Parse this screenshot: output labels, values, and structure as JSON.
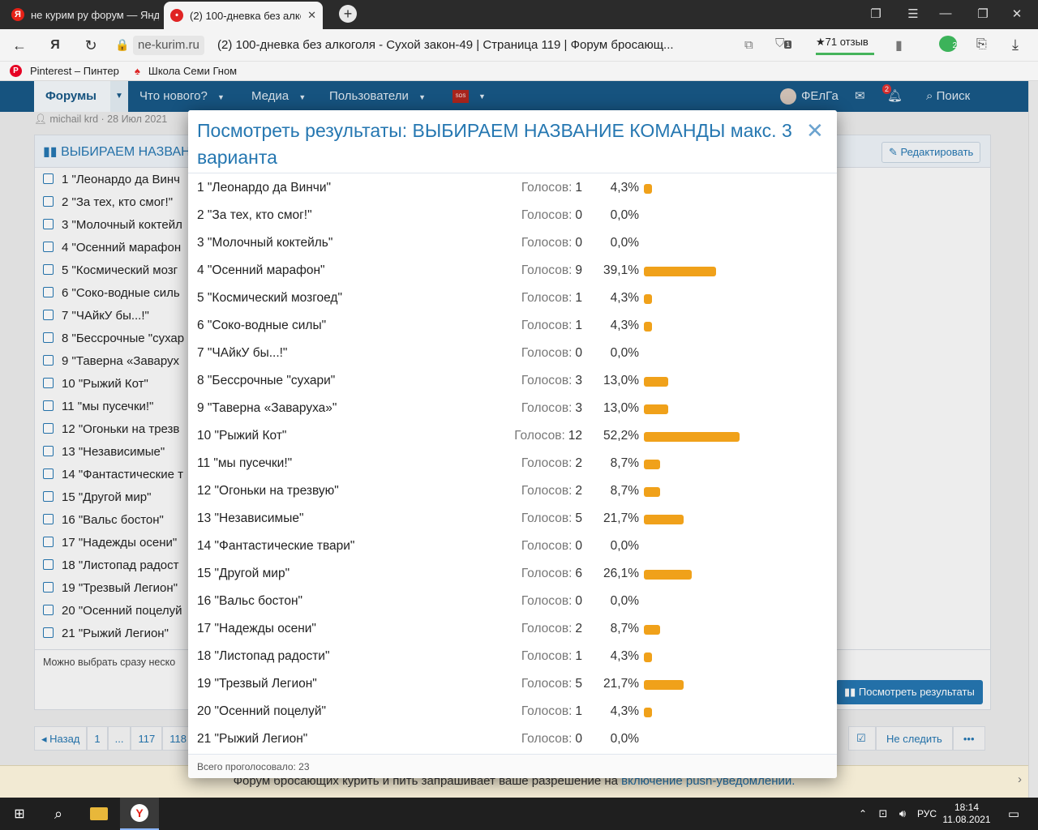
{
  "browser": {
    "tabs": [
      {
        "title": "не курим ру форум — Янд",
        "favicon": "Я",
        "active": false
      },
      {
        "title": "(2) 100-дневка без алко",
        "favicon": "•",
        "active": true
      }
    ],
    "new_tab": "+",
    "domain": "ne-kurim.ru",
    "page_title": "(2) 100-дневка без алкоголя - Сухой закон-49 | Страница 119 | Форум бросающ...",
    "reviews": "★71 отзыв",
    "ext_badge_1": "1",
    "ext_badge_2": "2",
    "bookmarks": [
      "Pinterest – Пинтер",
      "Школа Семи Гном"
    ]
  },
  "forum_nav": {
    "items": [
      "Форумы",
      "Что нового?",
      "Медиа",
      "Пользователи"
    ],
    "sos": "SOS",
    "user": "ФЕлГа",
    "alerts_count": "2",
    "search": "Поиск"
  },
  "thread": {
    "author_meta": "michail krd · 28 Июл 2021",
    "poll_heading": "ВЫБИРАЕМ НАЗВАН",
    "edit_button": "Редактировать",
    "options": [
      "1 \"Леонардо да Винч",
      "2 \"За тех, кто смог!\"",
      "3 \"Молочный коктейл",
      "4 \"Осенний марафон",
      "5 \"Космический мозг",
      "6 \"Соко-водные силь",
      "7 \"ЧАйкУ бы...!\"",
      "8 \"Бессрочные \"сухар",
      "9 \"Таверна «Заварух",
      "10 \"Рыжий Кот\"",
      "11 \"мы пусечки!\"",
      "12 \"Огоньки на трезв",
      "13 \"Независимые\"",
      "14 \"Фантастические т",
      "15 \"Другой мир\"",
      "16 \"Вальс бостон\"",
      "17 \"Надежды осени\"",
      "18 \"Листопад радост",
      "19 \"Трезвый Легион\"",
      "20 \"Осенний поцелуй",
      "21 \"Рыжий Легион\""
    ],
    "hint": "Можно выбрать сразу неско",
    "view_results": "Посмотреть результаты",
    "pagination": [
      "◂ Назад",
      "1",
      "...",
      "117",
      "118"
    ],
    "unwatch": "Не следить",
    "more": "•••",
    "push_notice_text": "Форум бросающих курить и пить запрашивает ваше разрешение на ",
    "push_notice_link": "включение push-уведомлений."
  },
  "modal": {
    "title": "Посмотреть результаты: ВЫБИРАЕМ НАЗВАНИЕ КОМАНДЫ макс. 3 варианта",
    "votes_label": "Голосов:",
    "rows": [
      {
        "label": "1 \"Леонардо да Винчи\"",
        "votes": 1,
        "percent": "4,3%",
        "pct": 4.3
      },
      {
        "label": "2 \"За тех, кто смог!\"",
        "votes": 0,
        "percent": "0,0%",
        "pct": 0
      },
      {
        "label": "3 \"Молочный коктейль\"",
        "votes": 0,
        "percent": "0,0%",
        "pct": 0
      },
      {
        "label": "4 \"Осенний марафон\"",
        "votes": 9,
        "percent": "39,1%",
        "pct": 39.1
      },
      {
        "label": "5 \"Космический мозгоед\"",
        "votes": 1,
        "percent": "4,3%",
        "pct": 4.3
      },
      {
        "label": "6 \"Соко-водные силы\"",
        "votes": 1,
        "percent": "4,3%",
        "pct": 4.3
      },
      {
        "label": "7 \"ЧАйкУ бы...!\"",
        "votes": 0,
        "percent": "0,0%",
        "pct": 0
      },
      {
        "label": "8 \"Бессрочные \"сухари\"",
        "votes": 3,
        "percent": "13,0%",
        "pct": 13.0
      },
      {
        "label": "9 \"Таверна «Заваруха»\"",
        "votes": 3,
        "percent": "13,0%",
        "pct": 13.0
      },
      {
        "label": "10 \"Рыжий Кот\"",
        "votes": 12,
        "percent": "52,2%",
        "pct": 52.2
      },
      {
        "label": "11 \"мы пусечки!\"",
        "votes": 2,
        "percent": "8,7%",
        "pct": 8.7
      },
      {
        "label": "12 \"Огоньки на трезвую\"",
        "votes": 2,
        "percent": "8,7%",
        "pct": 8.7
      },
      {
        "label": "13 \"Независимые\"",
        "votes": 5,
        "percent": "21,7%",
        "pct": 21.7
      },
      {
        "label": "14 \"Фантастические твари\"",
        "votes": 0,
        "percent": "0,0%",
        "pct": 0
      },
      {
        "label": "15 \"Другой мир\"",
        "votes": 6,
        "percent": "26,1%",
        "pct": 26.1
      },
      {
        "label": "16 \"Вальс бостон\"",
        "votes": 0,
        "percent": "0,0%",
        "pct": 0
      },
      {
        "label": "17 \"Надежды осени\"",
        "votes": 2,
        "percent": "8,7%",
        "pct": 8.7
      },
      {
        "label": "18 \"Листопад радости\"",
        "votes": 1,
        "percent": "4,3%",
        "pct": 4.3
      },
      {
        "label": "19 \"Трезвый Легион\"",
        "votes": 5,
        "percent": "21,7%",
        "pct": 21.7
      },
      {
        "label": "20 \"Осенний поцелуй\"",
        "votes": 1,
        "percent": "4,3%",
        "pct": 4.3
      },
      {
        "label": "21 \"Рыжий Легион\"",
        "votes": 0,
        "percent": "0,0%",
        "pct": 0
      }
    ],
    "total_votes": "Всего проголосовало: 23",
    "close_glyph": "✕"
  },
  "taskbar": {
    "lang": "РУС",
    "time": "18:14",
    "date": "11.08.2021"
  },
  "colors": {
    "accent": "#2577b1",
    "bar": "#f0a11a",
    "nav": "#185886"
  }
}
